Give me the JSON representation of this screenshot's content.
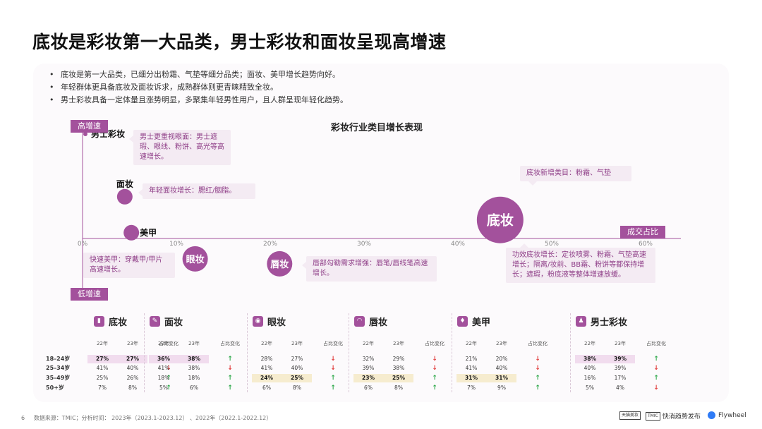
{
  "title": "底妆是彩妆第一大品类，男士彩妆和面妆呈现高增速",
  "bullets": [
    "底妆是第一大品类，已细分出粉霜、气垫等细分品类；面妆、美甲增长趋势向好。",
    "年轻群体更具备底妆及面妆诉求，成熟群体则更青睐精致全妆。",
    "男士彩妆具备一定体量且涨势明显，多聚集年轻男性用户，且人群呈现年轻化趋势。"
  ],
  "chart_data": {
    "type": "scatter",
    "title": "彩妆行业类目增长表现",
    "xlabel": "成交占比",
    "ylabel_high": "高增速",
    "ylabel_low": "低增速",
    "x_ticks": [
      "0%",
      "10%",
      "20%",
      "30%",
      "40%",
      "50%",
      "60%"
    ],
    "xlim": [
      0,
      60
    ],
    "points": [
      {
        "name": "男士彩妆",
        "x": 0.3,
        "y_level": 0.9,
        "size": "tiny",
        "label_inside": false
      },
      {
        "name": "面妆",
        "x": 4.5,
        "y_level": 0.36,
        "size": "small",
        "label_inside": false
      },
      {
        "name": "美甲",
        "x": 5.2,
        "y_level": 0.05,
        "size": "small",
        "label_inside": false
      },
      {
        "name": "眼妆",
        "x": 12.0,
        "y_level": -0.33,
        "size": "medium",
        "label_inside": true
      },
      {
        "name": "唇妆",
        "x": 21.0,
        "y_level": -0.41,
        "size": "medium",
        "label_inside": true
      },
      {
        "name": "底妆",
        "x": 44.5,
        "y_level": 0.16,
        "size": "large",
        "label_inside": true
      }
    ],
    "annotations": [
      {
        "key": "mens",
        "text": "男士更重视眼面：男士遮瑕、眼线、粉饼、高光等高速增长。"
      },
      {
        "key": "face",
        "text": "年轻面妆增长：腮红/胭脂。"
      },
      {
        "key": "nail",
        "text": "快速美甲：穿戴甲/甲片高速增长。"
      },
      {
        "key": "lip",
        "text": "唇部勾勒需求增强：唇笔/唇线笔高速增长。"
      },
      {
        "key": "base_new",
        "text": "底妆新增类目：粉霜、气垫"
      },
      {
        "key": "base_func",
        "text": "功效底妆增长：定妆喷雾、粉霜、气垫高速增长；隔离/妆前、BB霜、粉饼等都保持增长；遮瑕，粉底液等整体增速放缓。"
      }
    ]
  },
  "age_tables": {
    "col_headers": [
      "22年",
      "23年",
      "占比变化"
    ],
    "age_groups": [
      "18–24岁",
      "25–34岁",
      "35–49岁",
      "50+岁"
    ],
    "categories": [
      {
        "name": "底妆",
        "icon": "bottle-icon",
        "rows": [
          [
            "27%",
            "27%",
            "up"
          ],
          [
            "41%",
            "40%",
            "down"
          ],
          [
            "25%",
            "26%",
            "up"
          ],
          [
            "7%",
            "8%",
            "up"
          ]
        ],
        "highlight_row": 0
      },
      {
        "name": "面妆",
        "icon": "brush-icon",
        "rows": [
          [
            "36%",
            "38%",
            "up"
          ],
          [
            "41%",
            "38%",
            "down"
          ],
          [
            "18%",
            "18%",
            "up"
          ],
          [
            "5%",
            "6%",
            "up"
          ]
        ],
        "highlight_row": 0
      },
      {
        "name": "眼妆",
        "icon": "eye-icon",
        "rows": [
          [
            "28%",
            "27%",
            "down"
          ],
          [
            "41%",
            "40%",
            "down"
          ],
          [
            "24%",
            "25%",
            "up"
          ],
          [
            "6%",
            "8%",
            "up"
          ]
        ],
        "highlight_row": 2
      },
      {
        "name": "唇妆",
        "icon": "lips-icon",
        "rows": [
          [
            "32%",
            "29%",
            "down"
          ],
          [
            "39%",
            "38%",
            "down"
          ],
          [
            "23%",
            "25%",
            "up"
          ],
          [
            "6%",
            "8%",
            "up"
          ]
        ],
        "highlight_row": 2
      },
      {
        "name": "美甲",
        "icon": "nail-polish-icon",
        "rows": [
          [
            "21%",
            "20%",
            "down"
          ],
          [
            "41%",
            "40%",
            "down"
          ],
          [
            "31%",
            "31%",
            "up"
          ],
          [
            "7%",
            "9%",
            "up"
          ]
        ],
        "highlight_row": 2
      },
      {
        "name": "男士彩妆",
        "icon": "man-icon",
        "rows": [
          [
            "38%",
            "39%",
            "up"
          ],
          [
            "40%",
            "39%",
            "down"
          ],
          [
            "16%",
            "17%",
            "up"
          ],
          [
            "5%",
            "4%",
            "down"
          ]
        ],
        "highlight_row": 0
      }
    ]
  },
  "footer": {
    "page_number": "6",
    "source": "数据来源：TMIC；分析时间： 2023年（2023.1-2023.12） 、2022年（2022.1-2022.12）",
    "logos": [
      "天猫美妆",
      "TMIC",
      "快消趋势发布",
      "Flywheel"
    ]
  },
  "colors": {
    "accent": "#a3519c",
    "callout_bg": "#f4ebf3",
    "callout_text": "#8e3d87",
    "up": "#2ea84a",
    "down": "#e03b3b"
  }
}
